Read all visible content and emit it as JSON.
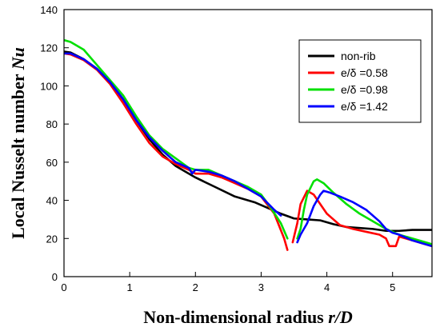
{
  "chart_data": {
    "type": "line",
    "xlabel": "Non-dimensional radius",
    "xlabel_var": "r/D",
    "ylabel": "Local Nusselt number",
    "ylabel_var": "Nu",
    "xlim": [
      0,
      5.6
    ],
    "ylim": [
      0,
      140
    ],
    "xticks": [
      0,
      1,
      2,
      3,
      4,
      5
    ],
    "yticks": [
      0,
      20,
      40,
      60,
      80,
      100,
      120,
      140
    ],
    "grid": false,
    "legend_position": "top-right",
    "series": [
      {
        "name": "non-rib",
        "color": "#000000",
        "segments": [
          [
            [
              0,
              118
            ],
            [
              0.1,
              117.5
            ],
            [
              0.3,
              114
            ],
            [
              0.5,
              109
            ],
            [
              0.7,
              102
            ],
            [
              0.9,
              93
            ],
            [
              1.1,
              82
            ],
            [
              1.3,
              72
            ],
            [
              1.5,
              64
            ],
            [
              1.7,
              58
            ],
            [
              2.0,
              52
            ],
            [
              2.3,
              47
            ],
            [
              2.6,
              42
            ],
            [
              2.9,
              39
            ],
            [
              3.1,
              36
            ],
            [
              3.3,
              33
            ],
            [
              3.5,
              30.5
            ],
            [
              3.7,
              30
            ],
            [
              3.9,
              29.5
            ],
            [
              4.1,
              27.5
            ],
            [
              4.3,
              26
            ],
            [
              4.5,
              25.5
            ],
            [
              4.7,
              25
            ],
            [
              4.9,
              24
            ],
            [
              5.1,
              24
            ],
            [
              5.3,
              24.5
            ],
            [
              5.5,
              24.5
            ],
            [
              5.6,
              24.5
            ]
          ]
        ]
      },
      {
        "name": "e/δ  =0.58",
        "color": "#ff0000",
        "segments": [
          [
            [
              0,
              117
            ],
            [
              0.1,
              116.5
            ],
            [
              0.3,
              113.5
            ],
            [
              0.5,
              108.5
            ],
            [
              0.7,
              101
            ],
            [
              0.9,
              91
            ],
            [
              1.1,
              80
            ],
            [
              1.3,
              70
            ],
            [
              1.5,
              63
            ],
            [
              1.7,
              59
            ],
            [
              1.9,
              56
            ],
            [
              2.0,
              54
            ],
            [
              2.2,
              54
            ],
            [
              2.4,
              52
            ],
            [
              2.6,
              49
            ],
            [
              2.8,
              46
            ],
            [
              3.0,
              42
            ],
            [
              3.2,
              33
            ],
            [
              3.35,
              20
            ],
            [
              3.4,
              14
            ]
          ],
          [
            [
              3.48,
              18
            ],
            [
              3.55,
              28
            ],
            [
              3.6,
              38
            ],
            [
              3.7,
              45
            ],
            [
              3.8,
              43
            ],
            [
              3.9,
              38
            ],
            [
              4.0,
              33
            ],
            [
              4.1,
              30
            ],
            [
              4.2,
              27
            ],
            [
              4.4,
              25
            ],
            [
              4.6,
              23.5
            ],
            [
              4.8,
              22
            ],
            [
              4.9,
              20
            ],
            [
              4.95,
              16
            ],
            [
              5.05,
              16
            ],
            [
              5.1,
              21
            ],
            [
              5.3,
              19
            ],
            [
              5.5,
              17
            ],
            [
              5.6,
              16
            ]
          ]
        ]
      },
      {
        "name": "e/δ  =0.98",
        "color": "#00e000",
        "segments": [
          [
            [
              0,
              124
            ],
            [
              0.1,
              123
            ],
            [
              0.3,
              119
            ],
            [
              0.5,
              111
            ],
            [
              0.7,
              103
            ],
            [
              0.9,
              95
            ],
            [
              1.1,
              84
            ],
            [
              1.3,
              74
            ],
            [
              1.5,
              67
            ],
            [
              1.7,
              62
            ],
            [
              1.9,
              57
            ],
            [
              2.0,
              56
            ],
            [
              2.2,
              56
            ],
            [
              2.4,
              53
            ],
            [
              2.6,
              50
            ],
            [
              2.8,
              47
            ],
            [
              3.0,
              43
            ],
            [
              3.15,
              36
            ],
            [
              3.3,
              28
            ],
            [
              3.4,
              20
            ]
          ],
          [
            [
              3.55,
              20
            ],
            [
              3.6,
              25
            ],
            [
              3.65,
              35
            ],
            [
              3.7,
              43
            ],
            [
              3.8,
              50
            ],
            [
              3.85,
              51
            ],
            [
              3.95,
              49
            ],
            [
              4.1,
              44
            ],
            [
              4.3,
              38
            ],
            [
              4.5,
              33
            ],
            [
              4.7,
              29
            ],
            [
              4.9,
              25
            ],
            [
              5.1,
              22
            ],
            [
              5.3,
              20
            ],
            [
              5.5,
              18
            ],
            [
              5.6,
              17
            ]
          ]
        ]
      },
      {
        "name": "e/δ  =1.42",
        "color": "#0000ff",
        "segments": [
          [
            [
              0,
              117
            ],
            [
              0.1,
              117
            ],
            [
              0.3,
              114
            ],
            [
              0.5,
              109
            ],
            [
              0.7,
              102
            ],
            [
              0.9,
              93
            ],
            [
              1.1,
              82
            ],
            [
              1.3,
              73
            ],
            [
              1.5,
              66
            ],
            [
              1.7,
              60
            ],
            [
              1.9,
              57
            ],
            [
              1.95,
              54
            ],
            [
              2.0,
              56
            ],
            [
              2.2,
              55
            ],
            [
              2.4,
              53
            ],
            [
              2.6,
              50
            ],
            [
              2.8,
              46
            ],
            [
              3.0,
              42
            ],
            [
              3.2,
              35
            ],
            [
              3.3,
              32
            ]
          ],
          [
            [
              3.55,
              18
            ],
            [
              3.6,
              22
            ],
            [
              3.7,
              28
            ],
            [
              3.8,
              37
            ],
            [
              3.9,
              43
            ],
            [
              3.95,
              45
            ],
            [
              4.05,
              44
            ],
            [
              4.2,
              42
            ],
            [
              4.4,
              39
            ],
            [
              4.6,
              35
            ],
            [
              4.8,
              29
            ],
            [
              4.9,
              25
            ],
            [
              5.0,
              23
            ],
            [
              5.1,
              22
            ],
            [
              5.3,
              19
            ],
            [
              5.5,
              17
            ],
            [
              5.6,
              16
            ]
          ]
        ]
      }
    ]
  }
}
